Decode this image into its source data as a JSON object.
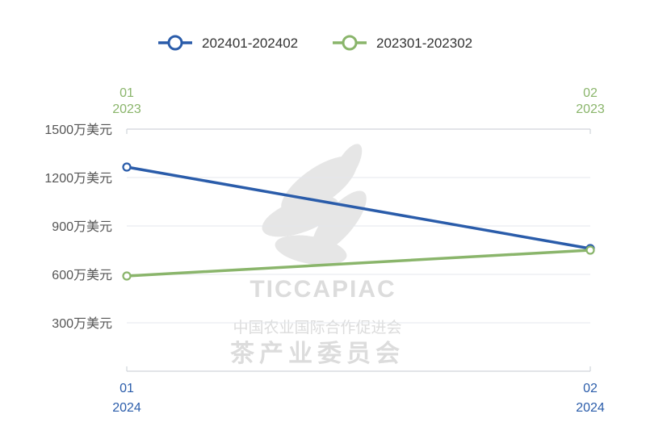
{
  "chart_data": {
    "type": "line",
    "title": "",
    "legend_position": "top-center",
    "grid": true,
    "yticks": [
      "1500万美元",
      "1200万美元",
      "900万美元",
      "600万美元",
      "300万美元"
    ],
    "ytick_values": [
      1500,
      1200,
      900,
      600,
      300
    ],
    "ylim": [
      0,
      1500
    ],
    "x_bottom": [
      {
        "month": "01",
        "year": "2024"
      },
      {
        "month": "02",
        "year": "2024"
      }
    ],
    "x_top": [
      {
        "month": "01",
        "year": "2023"
      },
      {
        "month": "02",
        "year": "2023"
      }
    ],
    "series": [
      {
        "name": "202401-202402",
        "color": "#2a5caa",
        "values": [
          1265,
          760
        ],
        "axis": "bottom"
      },
      {
        "name": "202301-202302",
        "color": "#8ab56b",
        "values": [
          590,
          750
        ],
        "axis": "top"
      }
    ]
  },
  "watermark": {
    "title": "TICCAPIAC",
    "line1": "中国农业国际合作促进会",
    "line2": "茶产业委员会"
  }
}
